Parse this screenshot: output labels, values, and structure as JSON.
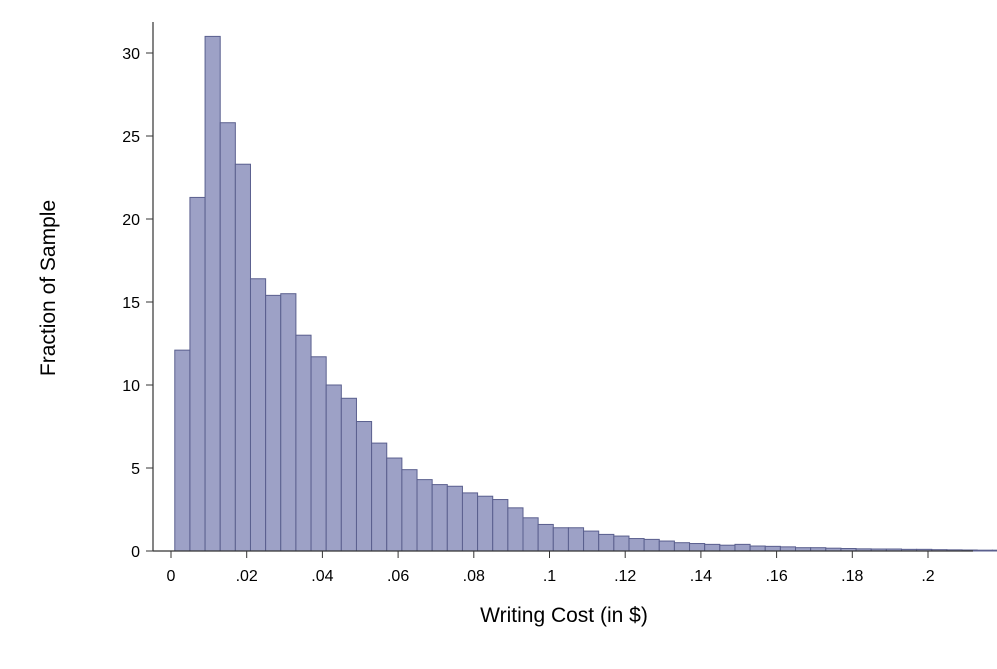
{
  "chart_data": {
    "type": "bar",
    "title": "",
    "xlabel": "Writing Cost (in $)",
    "ylabel": "Fraction of Sample",
    "xlim": [
      0,
      0.21
    ],
    "ylim": [
      0,
      32
    ],
    "bin_width": 0.004,
    "bin_start": 0.001,
    "bar_color": "#9da1c6",
    "bar_edge_color": "#5a5f8e",
    "x_ticks": [
      {
        "value": 0,
        "label": "0"
      },
      {
        "value": 0.02,
        "label": ".02"
      },
      {
        "value": 0.04,
        "label": ".04"
      },
      {
        "value": 0.06,
        "label": ".06"
      },
      {
        "value": 0.08,
        "label": ".08"
      },
      {
        "value": 0.1,
        "label": ".1"
      },
      {
        "value": 0.12,
        "label": ".12"
      },
      {
        "value": 0.14,
        "label": ".14"
      },
      {
        "value": 0.16,
        "label": ".16"
      },
      {
        "value": 0.18,
        "label": ".18"
      },
      {
        "value": 0.2,
        "label": ".2"
      }
    ],
    "y_ticks": [
      {
        "value": 0,
        "label": "0"
      },
      {
        "value": 5,
        "label": "5"
      },
      {
        "value": 10,
        "label": "10"
      },
      {
        "value": 15,
        "label": "15"
      },
      {
        "value": 20,
        "label": "20"
      },
      {
        "value": 25,
        "label": "25"
      },
      {
        "value": 30,
        "label": "30"
      }
    ],
    "values": [
      12.1,
      21.3,
      31.0,
      25.8,
      23.3,
      16.4,
      15.4,
      15.5,
      13.0,
      11.7,
      10.0,
      9.2,
      7.8,
      6.5,
      5.6,
      4.9,
      4.3,
      4.0,
      3.9,
      3.5,
      3.3,
      3.1,
      2.6,
      2.0,
      1.6,
      1.4,
      1.4,
      1.2,
      1.0,
      0.9,
      0.75,
      0.7,
      0.6,
      0.5,
      0.45,
      0.4,
      0.35,
      0.4,
      0.3,
      0.28,
      0.25,
      0.2,
      0.2,
      0.17,
      0.15,
      0.13,
      0.12,
      0.12,
      0.1,
      0.1,
      0.08,
      0.07,
      0.06,
      0.05,
      0.05,
      0.04,
      0.04,
      0.03,
      0.03,
      0.03,
      0.02,
      0.02,
      0.02,
      0.01,
      0.05,
      0.04,
      0.03,
      0.01
    ],
    "grid": false,
    "legend": "none"
  }
}
